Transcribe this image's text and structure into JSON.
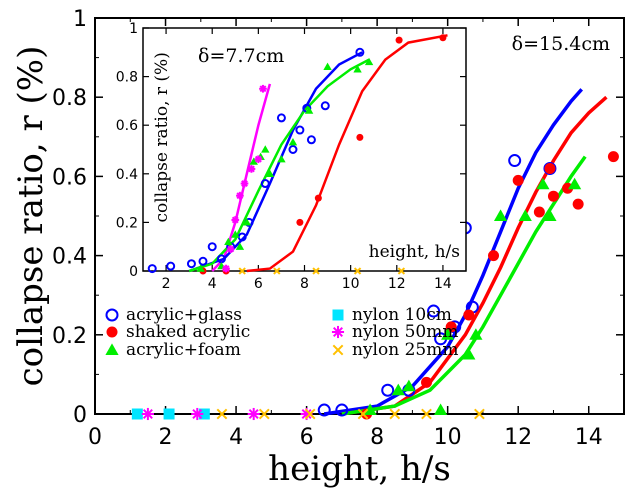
{
  "chart_data": [
    {
      "type": "scatter",
      "title": "",
      "xlabel": "height, h/s",
      "ylabel": "collapse ratio, r (%)",
      "xlim": [
        0,
        15
      ],
      "ylim": [
        0,
        1
      ],
      "xticks": [
        "0",
        "2",
        "4",
        "6",
        "8",
        "10",
        "12",
        "14"
      ],
      "yticks": [
        "0",
        "0.2",
        "0.4",
        "0.6",
        "0.8",
        "1"
      ],
      "annotation": "δ=15.4cm",
      "legend_position": "lower-left",
      "series": [
        {
          "name": "acrylic+glass",
          "marker": "open-circle",
          "color": "#0000ff",
          "points": [
            [
              6.5,
              0.01
            ],
            [
              7.0,
              0.01
            ],
            [
              8.3,
              0.06
            ],
            [
              8.9,
              0.06
            ],
            [
              9.6,
              0.26
            ],
            [
              9.8,
              0.19
            ],
            [
              10.2,
              0.22
            ],
            [
              10.5,
              0.47
            ],
            [
              10.7,
              0.27
            ],
            [
              11.9,
              0.64
            ],
            [
              12.9,
              0.62
            ]
          ]
        },
        {
          "name": "shaked acrylic",
          "marker": "filled-circle",
          "color": "#ff0000",
          "points": [
            [
              7.7,
              0.0
            ],
            [
              9.4,
              0.08
            ],
            [
              10.1,
              0.22
            ],
            [
              10.6,
              0.25
            ],
            [
              11.3,
              0.4
            ],
            [
              12.0,
              0.59
            ],
            [
              12.6,
              0.51
            ],
            [
              12.9,
              0.62
            ],
            [
              13.0,
              0.55
            ],
            [
              13.4,
              0.57
            ],
            [
              13.7,
              0.53
            ],
            [
              14.7,
              0.65
            ]
          ]
        },
        {
          "name": "acrylic+foam",
          "marker": "filled-triangle",
          "color": "#00ee00",
          "points": [
            [
              7.8,
              0.01
            ],
            [
              8.6,
              0.06
            ],
            [
              8.9,
              0.07
            ],
            [
              9.8,
              0.01
            ],
            [
              10.0,
              0.2
            ],
            [
              10.6,
              0.15
            ],
            [
              10.8,
              0.2
            ],
            [
              11.5,
              0.5
            ],
            [
              12.2,
              0.5
            ],
            [
              12.7,
              0.58
            ],
            [
              12.9,
              0.5
            ],
            [
              13.6,
              0.58
            ]
          ]
        },
        {
          "name": "nylon 10cm",
          "marker": "filled-square",
          "color": "#00e5ff",
          "points": [
            [
              1.2,
              0.0
            ],
            [
              2.1,
              0.0
            ],
            [
              3.1,
              0.0
            ]
          ]
        },
        {
          "name": "nylon 50mm",
          "marker": "asterisk",
          "color": "#ff00ff",
          "points": [
            [
              1.5,
              0.0
            ],
            [
              2.9,
              0.0
            ],
            [
              4.5,
              0.0
            ],
            [
              6.0,
              0.0
            ]
          ]
        },
        {
          "name": "nylon 25mm",
          "marker": "x",
          "color": "#ffc000",
          "points": [
            [
              3.6,
              0.0
            ],
            [
              4.8,
              0.0
            ],
            [
              6.1,
              0.0
            ],
            [
              7.6,
              0.0
            ],
            [
              8.5,
              0.0
            ],
            [
              9.4,
              0.0
            ],
            [
              10.9,
              0.0
            ]
          ]
        }
      ],
      "fits": [
        {
          "color": "#0000ff",
          "points": [
            [
              6.5,
              0
            ],
            [
              8,
              0.02
            ],
            [
              9,
              0.07
            ],
            [
              10,
              0.17
            ],
            [
              10.5,
              0.25
            ],
            [
              11,
              0.35
            ],
            [
              11.5,
              0.46
            ],
            [
              12,
              0.57
            ],
            [
              12.5,
              0.66
            ],
            [
              13,
              0.73
            ],
            [
              13.5,
              0.79
            ],
            [
              13.8,
              0.82
            ]
          ]
        },
        {
          "color": "#ff0000",
          "points": [
            [
              7,
              0
            ],
            [
              8.5,
              0.02
            ],
            [
              9.5,
              0.08
            ],
            [
              10.5,
              0.2
            ],
            [
              11,
              0.28
            ],
            [
              11.5,
              0.37
            ],
            [
              12,
              0.47
            ],
            [
              12.5,
              0.56
            ],
            [
              13,
              0.64
            ],
            [
              13.5,
              0.71
            ],
            [
              14,
              0.76
            ],
            [
              14.5,
              0.8
            ]
          ]
        },
        {
          "color": "#00ee00",
          "points": [
            [
              7,
              0
            ],
            [
              8.5,
              0.02
            ],
            [
              9.5,
              0.06
            ],
            [
              10.5,
              0.15
            ],
            [
              11,
              0.22
            ],
            [
              11.5,
              0.3
            ],
            [
              12,
              0.38
            ],
            [
              12.5,
              0.46
            ],
            [
              13,
              0.53
            ],
            [
              13.5,
              0.6
            ],
            [
              13.9,
              0.65
            ]
          ]
        }
      ]
    },
    {
      "type": "scatter",
      "title": "",
      "xlabel": "height, h/s",
      "ylabel": "collapse ratio, r (%)",
      "xlim": [
        1,
        15
      ],
      "ylim": [
        0,
        1
      ],
      "xticks": [
        "2",
        "4",
        "6",
        "8",
        "10",
        "12",
        "14"
      ],
      "yticks": [
        "0",
        "0.2",
        "0.4",
        "0.6",
        "0.8",
        "1"
      ],
      "annotation": "δ=7.7cm",
      "series": [
        {
          "name": "acrylic+glass",
          "marker": "open-circle",
          "color": "#0000ff",
          "points": [
            [
              1.4,
              0.01
            ],
            [
              2.2,
              0.02
            ],
            [
              3.1,
              0.03
            ],
            [
              3.6,
              0.04
            ],
            [
              4.0,
              0.1
            ],
            [
              4.4,
              0.05
            ],
            [
              4.8,
              0.1
            ],
            [
              5.3,
              0.14
            ],
            [
              5.6,
              0.2
            ],
            [
              6.3,
              0.36
            ],
            [
              7.0,
              0.63
            ],
            [
              7.5,
              0.5
            ],
            [
              7.8,
              0.58
            ],
            [
              8.1,
              0.67
            ],
            [
              8.3,
              0.54
            ],
            [
              8.9,
              0.68
            ],
            [
              10.4,
              0.9
            ]
          ]
        },
        {
          "name": "shaked acrylic",
          "marker": "filled-circle",
          "color": "#ff0000",
          "points": [
            [
              3.6,
              0.0
            ],
            [
              4.6,
              0.0
            ],
            [
              7.8,
              0.2
            ],
            [
              8.6,
              0.3
            ],
            [
              10.4,
              0.55
            ],
            [
              12.1,
              0.95
            ],
            [
              14.0,
              0.96
            ]
          ]
        },
        {
          "name": "acrylic+foam",
          "marker": "filled-triangle",
          "color": "#00ee00",
          "points": [
            [
              3.5,
              0.01
            ],
            [
              4.4,
              0.02
            ],
            [
              4.7,
              0.12
            ],
            [
              5.0,
              0.15
            ],
            [
              5.2,
              0.1
            ],
            [
              5.5,
              0.2
            ],
            [
              5.8,
              0.45
            ],
            [
              6.1,
              0.47
            ],
            [
              6.3,
              0.5
            ],
            [
              6.5,
              0.4
            ],
            [
              7.0,
              0.46
            ],
            [
              7.5,
              0.53
            ],
            [
              8.2,
              0.66
            ],
            [
              9.0,
              0.84
            ],
            [
              10.3,
              0.83
            ],
            [
              10.8,
              0.86
            ]
          ]
        },
        {
          "name": "nylon 50mm",
          "marker": "asterisk",
          "color": "#ff00ff",
          "points": [
            [
              4.6,
              0.01
            ],
            [
              4.8,
              0.09
            ],
            [
              5.0,
              0.21
            ],
            [
              5.2,
              0.31
            ],
            [
              5.4,
              0.36
            ],
            [
              5.7,
              0.42
            ],
            [
              6.0,
              0.46
            ],
            [
              6.2,
              0.75
            ]
          ]
        },
        {
          "name": "nylon 25mm",
          "marker": "x",
          "color": "#ffc000",
          "points": [
            [
              5.3,
              0.0
            ],
            [
              6.8,
              0.0
            ],
            [
              8.5,
              0.0
            ],
            [
              10.3,
              0.0
            ],
            [
              12.2,
              0.0
            ]
          ]
        }
      ],
      "fits": [
        {
          "color": "#ff00ff",
          "points": [
            [
              4.0,
              0
            ],
            [
              4.5,
              0.05
            ],
            [
              5.0,
              0.2
            ],
            [
              5.5,
              0.4
            ],
            [
              6.0,
              0.6
            ],
            [
              6.5,
              0.77
            ]
          ]
        },
        {
          "color": "#0000ff",
          "points": [
            [
              3.0,
              0
            ],
            [
              4.5,
              0.05
            ],
            [
              5.5,
              0.15
            ],
            [
              6.5,
              0.36
            ],
            [
              7.5,
              0.58
            ],
            [
              8.5,
              0.75
            ],
            [
              9.5,
              0.85
            ],
            [
              10.5,
              0.9
            ]
          ]
        },
        {
          "color": "#00ee00",
          "points": [
            [
              3.0,
              0
            ],
            [
              4.0,
              0.03
            ],
            [
              5.0,
              0.13
            ],
            [
              6.0,
              0.33
            ],
            [
              7.0,
              0.52
            ],
            [
              8.0,
              0.66
            ],
            [
              9.0,
              0.76
            ],
            [
              10.0,
              0.83
            ],
            [
              10.8,
              0.87
            ]
          ]
        },
        {
          "color": "#ff0000",
          "points": [
            [
              5.5,
              0
            ],
            [
              6.5,
              0.01
            ],
            [
              7.5,
              0.08
            ],
            [
              8.5,
              0.27
            ],
            [
              9.5,
              0.52
            ],
            [
              10.5,
              0.74
            ],
            [
              11.5,
              0.87
            ],
            [
              12.5,
              0.94
            ],
            [
              14.2,
              0.97
            ]
          ]
        }
      ]
    }
  ]
}
